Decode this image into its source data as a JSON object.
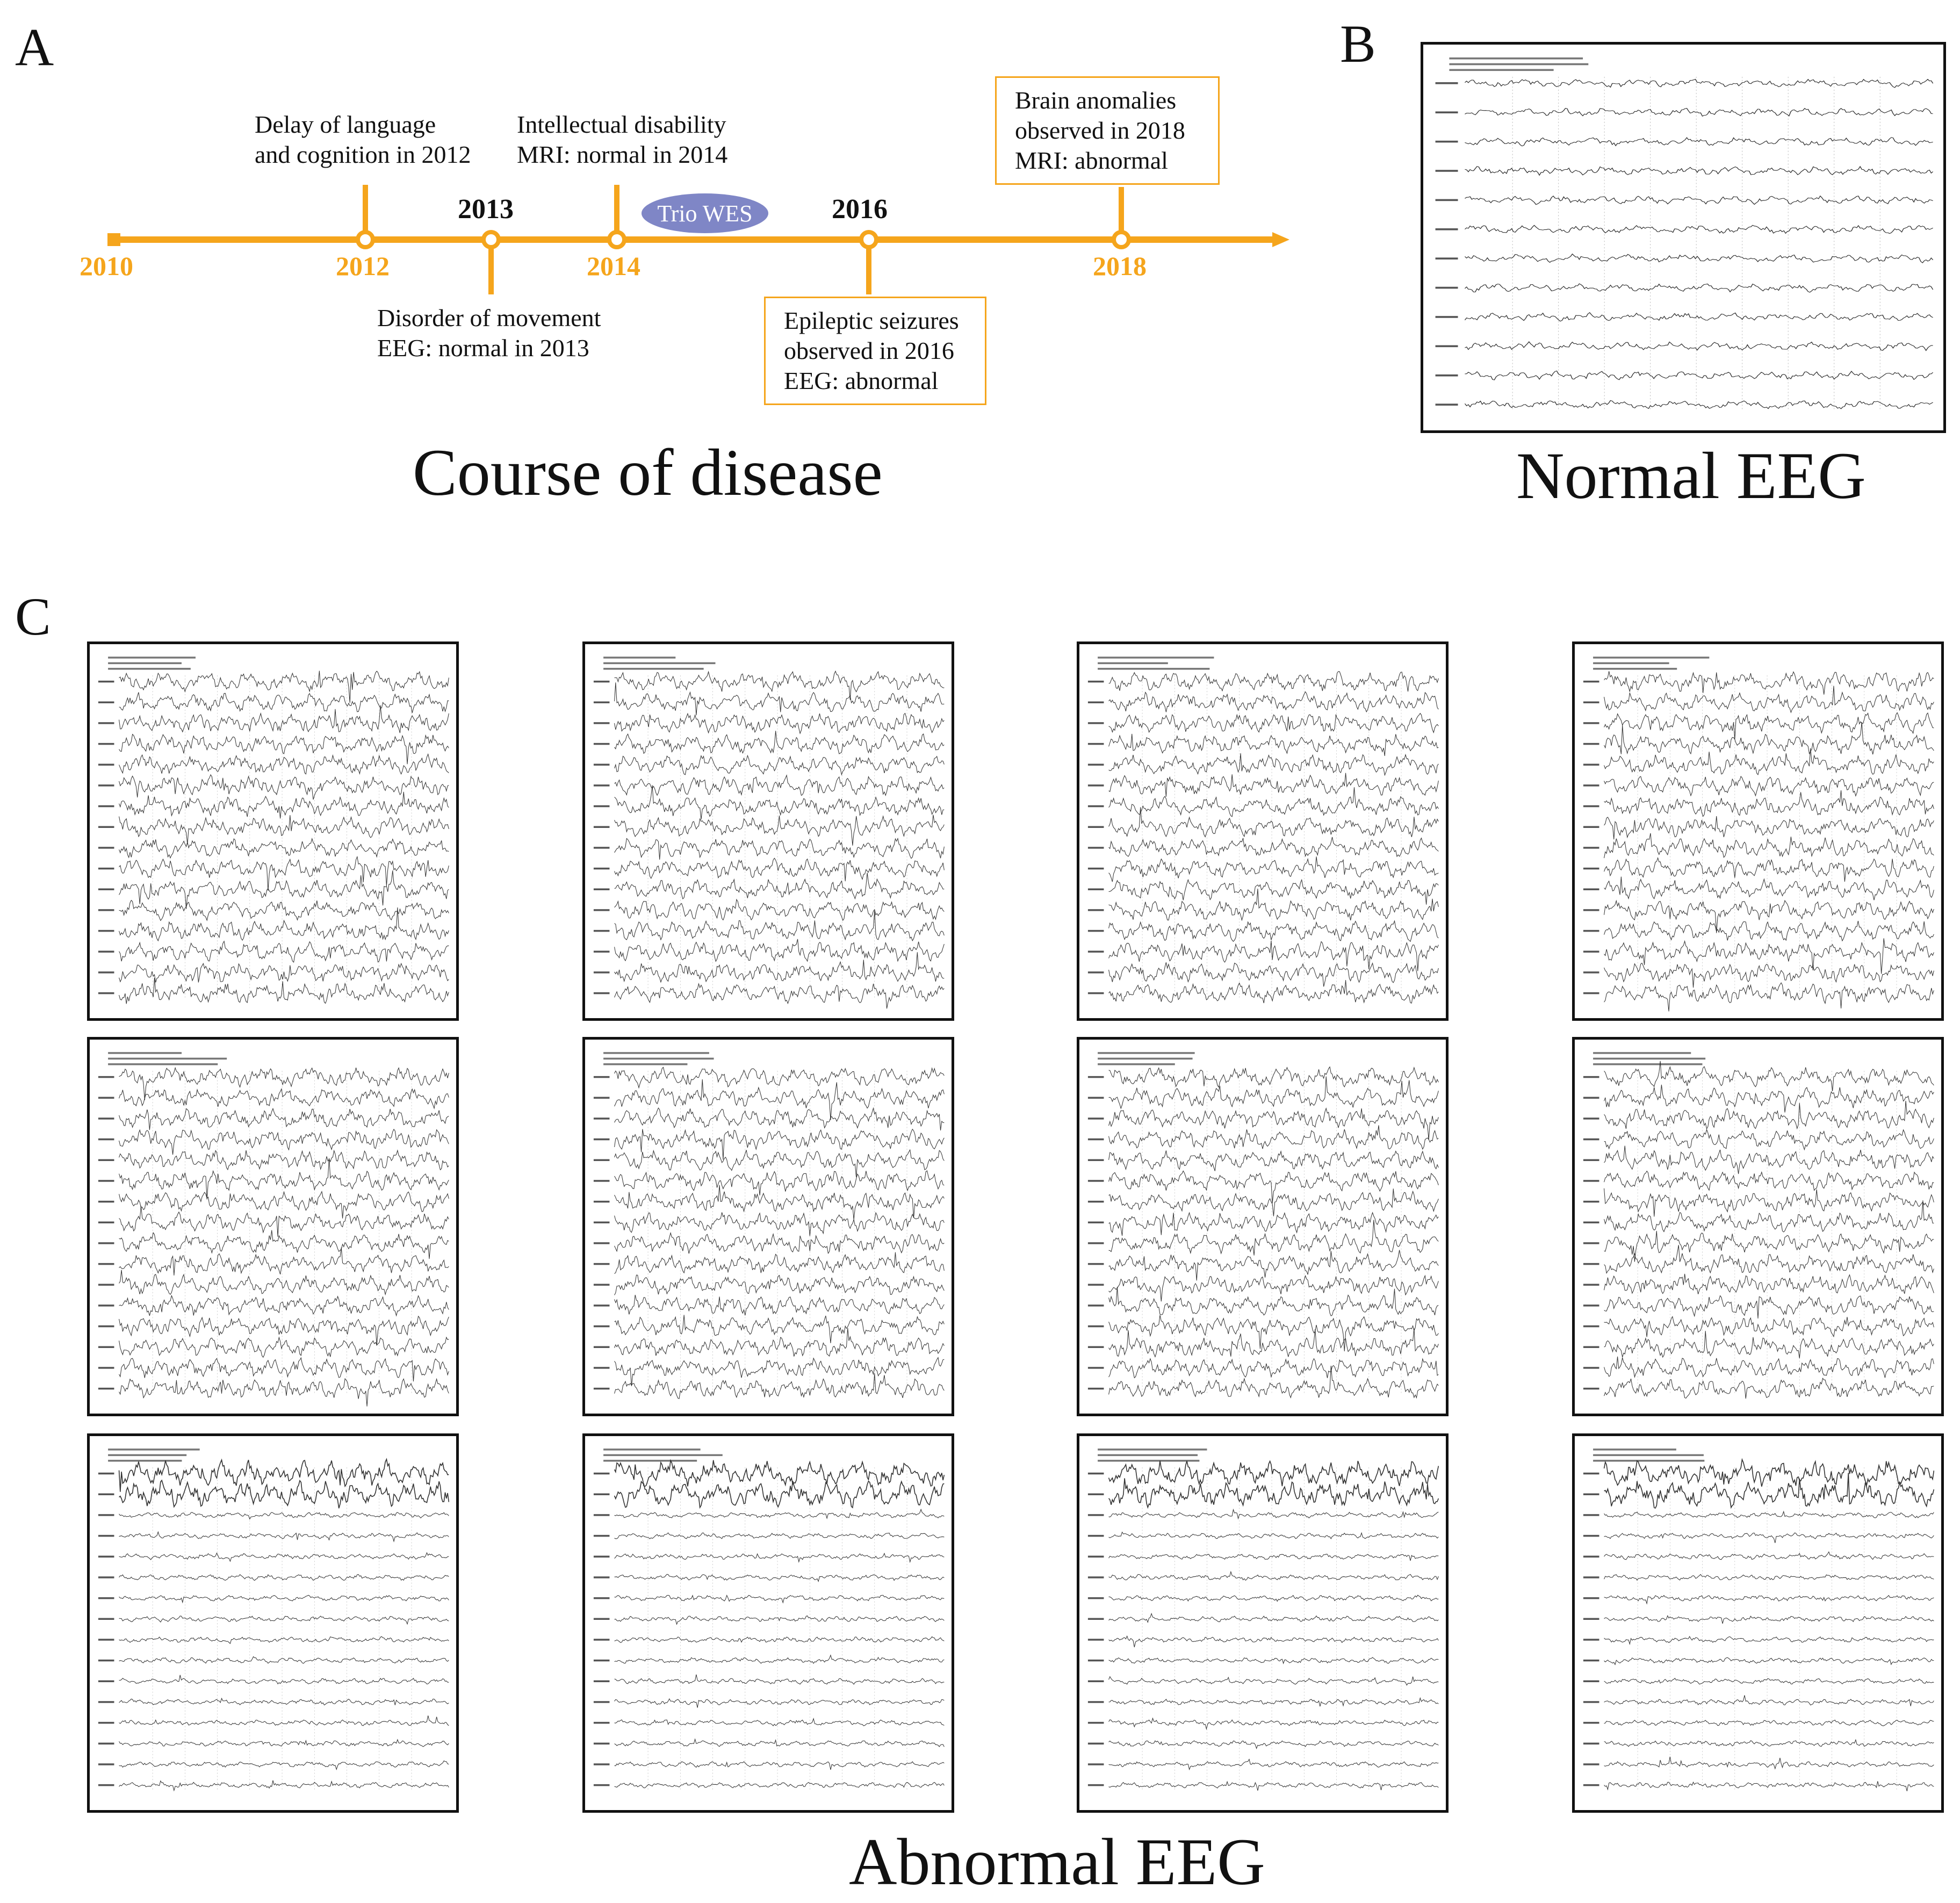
{
  "panel_a": {
    "letter": "A",
    "title": "Course of disease",
    "years_below": [
      "2010",
      "2012",
      "2014",
      "2018"
    ],
    "years_above": [
      "2013",
      "2016"
    ],
    "events": {
      "delay": [
        "Delay of language",
        "and cognition in 2012"
      ],
      "intellectual": [
        "Intellectual disability",
        "MRI: normal in 2014"
      ],
      "brain": [
        "Brain anomalies",
        "observed in 2018",
        "MRI: abnormal"
      ],
      "movement": [
        "Disorder of movement",
        "EEG: normal in 2013"
      ],
      "seizures": [
        "Epileptic seizures",
        "observed in 2016",
        "EEG: abnormal"
      ]
    },
    "wes_label": "Trio WES",
    "colors": {
      "timeline": "#F5A51C",
      "wes": "#7F86C6"
    }
  },
  "panel_b": {
    "letter": "B",
    "title": "Normal EEG"
  },
  "panel_c": {
    "letter": "C",
    "title": "Abnormal EEG"
  }
}
